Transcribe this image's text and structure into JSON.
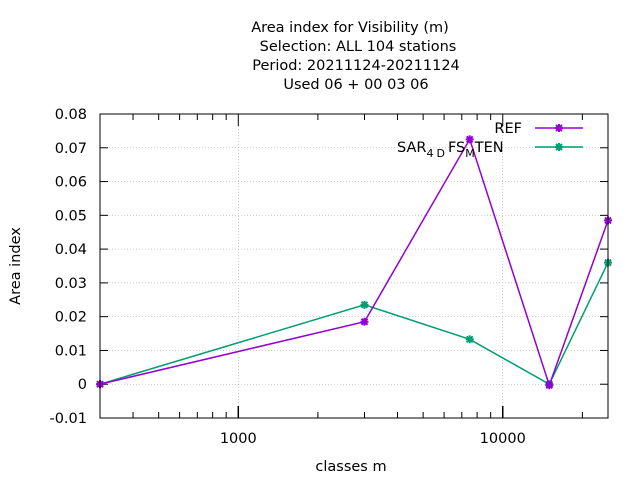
{
  "chart_data": {
    "type": "line",
    "title": [
      "Area index  for Visibility (m)",
      "Selection: ALL    104 stations",
      "Period: 20211124-20211124",
      "Used  06 + 00 03 06"
    ],
    "xlabel": "classes m",
    "ylabel": "Area index",
    "xscale": "log",
    "xlim": [
      300,
      25000
    ],
    "ylim": [
      -0.01,
      0.08
    ],
    "yticks": [
      -0.01,
      0,
      0.01,
      0.02,
      0.03,
      0.04,
      0.05,
      0.06,
      0.07,
      0.08
    ],
    "ytick_labels": [
      "-0.01",
      "0",
      "0.01",
      "0.02",
      "0.03",
      "0.04",
      "0.05",
      "0.06",
      "0.07",
      "0.08"
    ],
    "xticks": [
      1000,
      10000
    ],
    "xtick_labels": [
      "1000",
      "10000"
    ],
    "grid": true,
    "legend_position": "top-right",
    "series": [
      {
        "name": "REF",
        "color": "#9400d3",
        "x": [
          300,
          3000,
          7500,
          15000,
          25000
        ],
        "y": [
          0.0,
          0.0185,
          0.0725,
          -0.0003,
          0.0485
        ]
      },
      {
        "name": "SAR_4D FS_M TEN",
        "legend_parts": {
          "a": "SAR",
          "sub1": "4",
          "b": "D",
          "c": "FS",
          "sub2": "M",
          "d": "TEN"
        },
        "color": "#009e73",
        "x": [
          300,
          3000,
          7500,
          15000,
          25000
        ],
        "y": [
          0.0,
          0.0235,
          0.0133,
          0.0,
          0.036
        ]
      }
    ]
  }
}
